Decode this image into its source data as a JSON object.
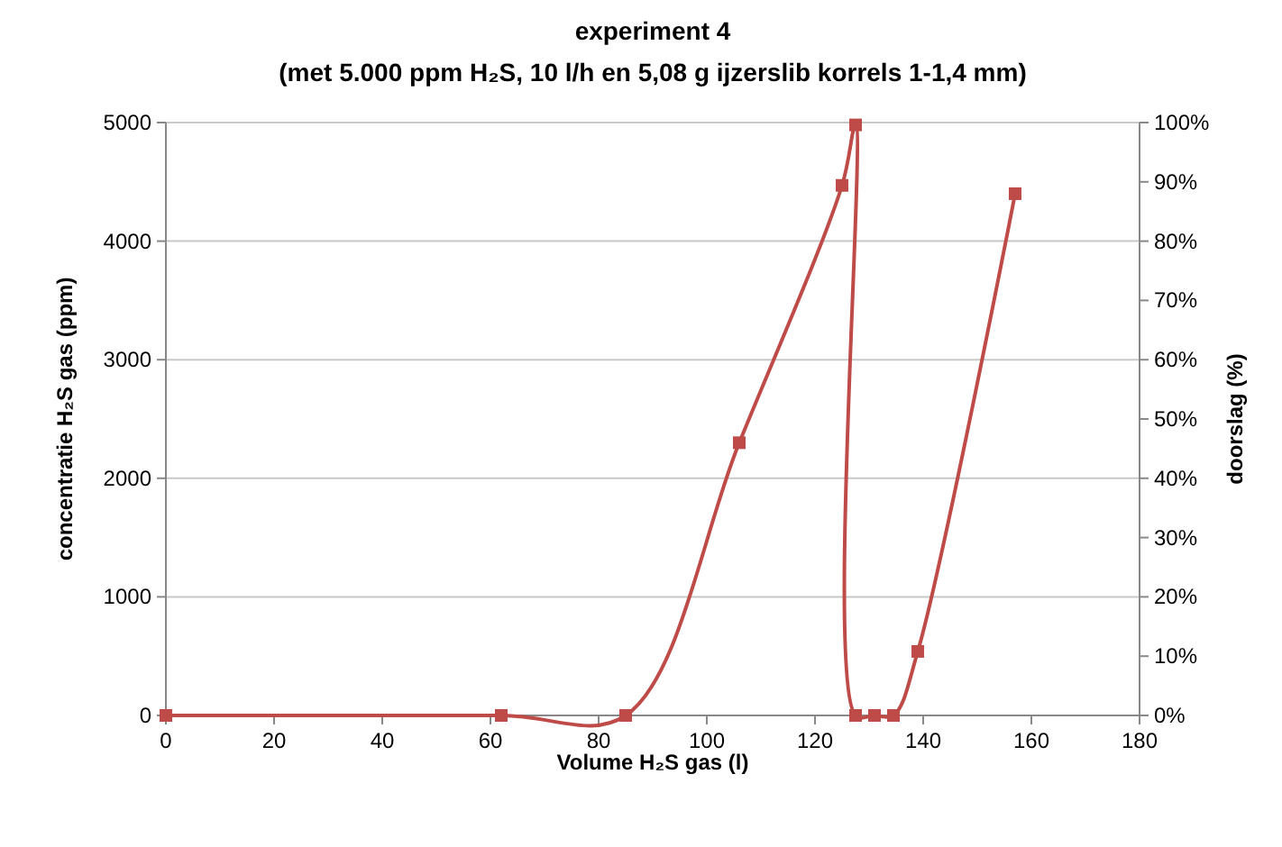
{
  "chart_data": {
    "type": "line",
    "title": "experiment 4",
    "subtitle": "(met 5.000 ppm H₂S, 10 l/h en 5,08 g ijzerslib korrels 1-1,4 mm)",
    "xlabel": "Volume H₂S gas (l)",
    "ylabel": "concentratie H₂S gas (ppm)",
    "y2label": "doorslag (%)",
    "x": [
      0,
      62,
      85,
      106,
      125,
      127.5,
      127.5,
      131,
      134.5,
      139,
      157
    ],
    "series": [
      {
        "color": "#be4b48",
        "values": [
          0,
          0,
          0,
          2300,
          4470,
          4980,
          0,
          0,
          0,
          540,
          4400
        ]
      }
    ],
    "xlim": [
      0,
      180
    ],
    "xticks": [
      0,
      20,
      40,
      60,
      80,
      100,
      120,
      140,
      160,
      180
    ],
    "ylim": [
      0,
      5000
    ],
    "yticks": [
      0,
      1000,
      2000,
      3000,
      4000,
      5000
    ],
    "y2lim": [
      0,
      100
    ],
    "y2ticks": [
      {
        "value": 0,
        "label": "0%"
      },
      {
        "value": 10,
        "label": "10%"
      },
      {
        "value": 20,
        "label": "20%"
      },
      {
        "value": 30,
        "label": "30%"
      },
      {
        "value": 40,
        "label": "40%"
      },
      {
        "value": 50,
        "label": "50%"
      },
      {
        "value": 60,
        "label": "60%"
      },
      {
        "value": 70,
        "label": "70%"
      },
      {
        "value": 80,
        "label": "80%"
      },
      {
        "value": 90,
        "label": "90%"
      },
      {
        "value": 100,
        "label": "100%"
      }
    ],
    "grid": "y",
    "marker": "square",
    "line_style": "solid"
  }
}
